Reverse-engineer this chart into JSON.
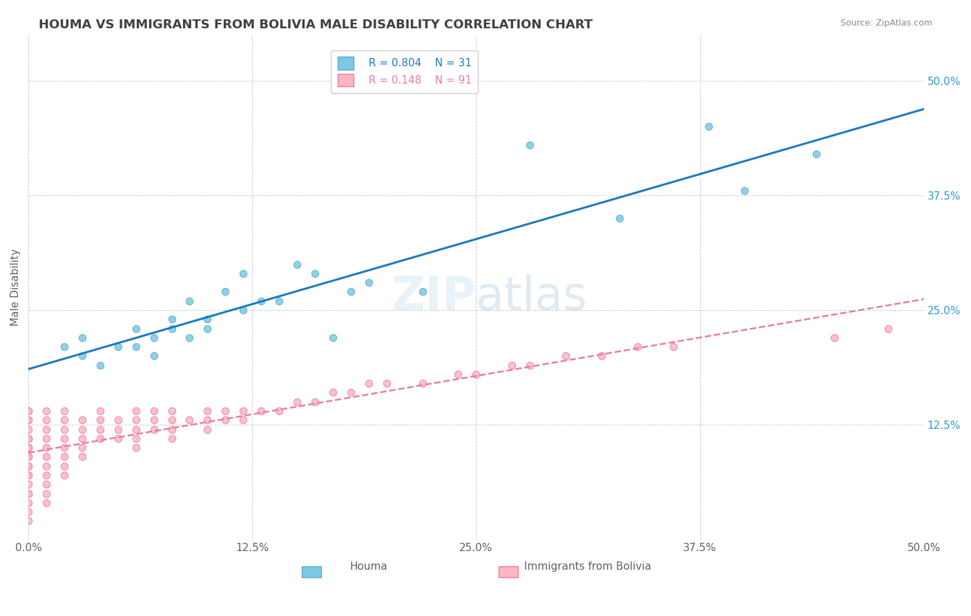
{
  "title": "HOUMA VS IMMIGRANTS FROM BOLIVIA MALE DISABILITY CORRELATION CHART",
  "source": "Source: ZipAtlas.com",
  "ylabel": "Male Disability",
  "xlabel": "",
  "xlim": [
    0.0,
    0.5
  ],
  "ylim": [
    0.0,
    0.55
  ],
  "xtick_labels": [
    "0.0%",
    "12.5%",
    "25.0%",
    "37.5%",
    "50.0%"
  ],
  "xtick_vals": [
    0.0,
    0.125,
    0.25,
    0.375,
    0.5
  ],
  "ytick_labels": [
    "12.5%",
    "25.0%",
    "37.5%",
    "50.0%"
  ],
  "ytick_vals": [
    0.125,
    0.25,
    0.375,
    0.5
  ],
  "right_ytick_labels": [
    "12.5%",
    "25.0%",
    "37.5%",
    "50.0%"
  ],
  "right_ytick_vals": [
    0.125,
    0.25,
    0.375,
    0.5
  ],
  "legend_r1": "R = 0.804",
  "legend_n1": "N = 31",
  "legend_r2": "R = 0.148",
  "legend_n2": "N = 91",
  "houma_color": "#7ec8e3",
  "bolivia_color": "#ffb6c1",
  "houma_edge": "#5aabcf",
  "bolivia_edge": "#e87da0",
  "trend_blue": "#1e7abf",
  "trend_pink": "#e87da0",
  "background": "#ffffff",
  "grid_color": "#cccccc",
  "title_color": "#404040",
  "watermark_zip": "ZIP",
  "watermark_atlas": "atlas",
  "houma_x": [
    0.02,
    0.03,
    0.03,
    0.04,
    0.05,
    0.06,
    0.06,
    0.07,
    0.07,
    0.08,
    0.08,
    0.09,
    0.09,
    0.1,
    0.1,
    0.11,
    0.12,
    0.12,
    0.13,
    0.14,
    0.15,
    0.16,
    0.17,
    0.18,
    0.19,
    0.22,
    0.28,
    0.33,
    0.38,
    0.4,
    0.44
  ],
  "houma_y": [
    0.21,
    0.2,
    0.22,
    0.19,
    0.21,
    0.23,
    0.21,
    0.22,
    0.2,
    0.23,
    0.24,
    0.22,
    0.26,
    0.24,
    0.23,
    0.27,
    0.25,
    0.29,
    0.26,
    0.26,
    0.3,
    0.29,
    0.22,
    0.27,
    0.28,
    0.27,
    0.43,
    0.35,
    0.45,
    0.38,
    0.42
  ],
  "bolivia_x": [
    0.0,
    0.0,
    0.0,
    0.0,
    0.0,
    0.0,
    0.0,
    0.0,
    0.0,
    0.0,
    0.0,
    0.0,
    0.0,
    0.0,
    0.0,
    0.0,
    0.0,
    0.0,
    0.0,
    0.0,
    0.0,
    0.01,
    0.01,
    0.01,
    0.01,
    0.01,
    0.01,
    0.01,
    0.01,
    0.01,
    0.01,
    0.01,
    0.02,
    0.02,
    0.02,
    0.02,
    0.02,
    0.02,
    0.02,
    0.02,
    0.03,
    0.03,
    0.03,
    0.03,
    0.03,
    0.04,
    0.04,
    0.04,
    0.04,
    0.05,
    0.05,
    0.05,
    0.06,
    0.06,
    0.06,
    0.06,
    0.06,
    0.07,
    0.07,
    0.07,
    0.08,
    0.08,
    0.08,
    0.08,
    0.09,
    0.1,
    0.1,
    0.1,
    0.11,
    0.11,
    0.12,
    0.12,
    0.13,
    0.14,
    0.15,
    0.16,
    0.17,
    0.18,
    0.19,
    0.2,
    0.22,
    0.24,
    0.25,
    0.27,
    0.28,
    0.3,
    0.32,
    0.34,
    0.36,
    0.45,
    0.48
  ],
  "bolivia_y": [
    0.14,
    0.13,
    0.12,
    0.11,
    0.1,
    0.09,
    0.08,
    0.07,
    0.06,
    0.05,
    0.04,
    0.03,
    0.02,
    0.14,
    0.13,
    0.11,
    0.1,
    0.09,
    0.08,
    0.07,
    0.05,
    0.14,
    0.13,
    0.12,
    0.11,
    0.1,
    0.09,
    0.08,
    0.07,
    0.06,
    0.05,
    0.04,
    0.14,
    0.13,
    0.12,
    0.11,
    0.1,
    0.09,
    0.08,
    0.07,
    0.13,
    0.12,
    0.11,
    0.1,
    0.09,
    0.14,
    0.13,
    0.12,
    0.11,
    0.13,
    0.12,
    0.11,
    0.14,
    0.13,
    0.12,
    0.11,
    0.1,
    0.14,
    0.13,
    0.12,
    0.14,
    0.13,
    0.12,
    0.11,
    0.13,
    0.14,
    0.13,
    0.12,
    0.14,
    0.13,
    0.14,
    0.13,
    0.14,
    0.14,
    0.15,
    0.15,
    0.16,
    0.16,
    0.17,
    0.17,
    0.17,
    0.18,
    0.18,
    0.19,
    0.19,
    0.2,
    0.2,
    0.21,
    0.21,
    0.22,
    0.23
  ]
}
